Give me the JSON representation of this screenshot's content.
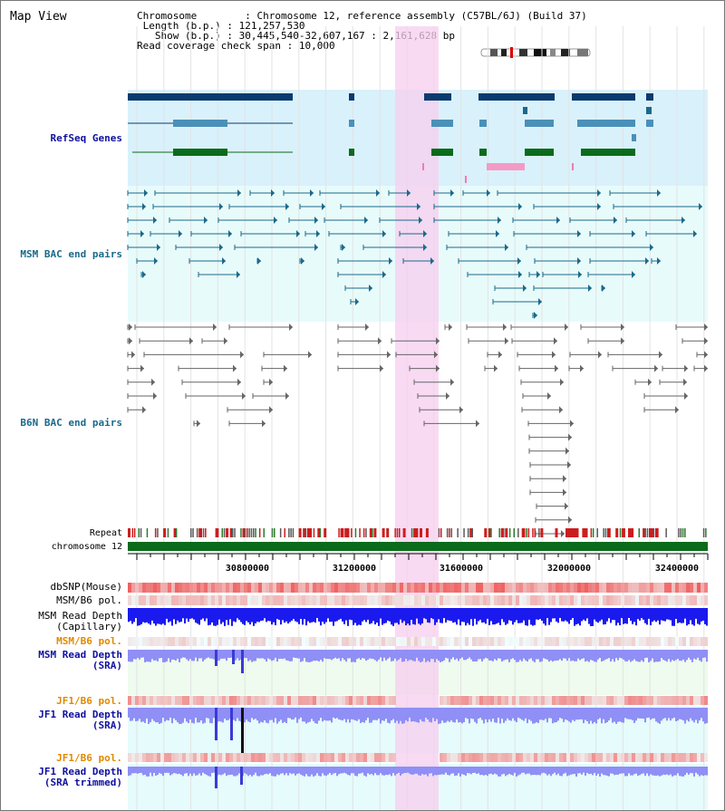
{
  "view_title": "Map View",
  "info": {
    "chromosome_label": "Chromosome",
    "chromosome_value": "Chromosome 12, reference assembly (C57BL/6J) (Build 37)",
    "length_label": "Length (b.p.)",
    "length_value": "121,257,530",
    "show_label": "Show (b.p.)",
    "show_value": "30,445,540-32,607,167 : 2,161,628 bp",
    "coverage_label": "Read coverage check span",
    "coverage_value": "10,000"
  },
  "tracks": {
    "refseq": "RefSeq Genes",
    "msm_bac": "MSM BAC end pairs",
    "b6n_bac": "B6N BAC end pairs",
    "repeat": "Repeat",
    "chromosome": "chromosome 12",
    "dbsnp": "dbSNP(Mouse)",
    "msm_b6_pol": "MSM/B6 pol.",
    "msm_depth_cap_1": "MSM Read Depth",
    "msm_depth_cap_2": "(Capillary)",
    "msm_b6_pol2": "MSM/B6 pol.",
    "msm_depth_sra_1": "MSM Read Depth",
    "msm_depth_sra_2": "(SRA)",
    "jf1_b6_pol": "JF1/B6 pol.",
    "jf1_depth_sra_1": "JF1 Read Depth",
    "jf1_depth_sra_2": "(SRA)",
    "jf1_b6_pol2": "JF1/B6 pol.",
    "jf1_depth_trim_1": "JF1 Read Depth",
    "jf1_depth_trim_2": "(SRA trimmed)"
  },
  "axis_ticks": [
    "30800000",
    "31200000",
    "31600000",
    "32000000",
    "32400000"
  ],
  "colors": {
    "refseq_dark": "#0b3b6e",
    "refseq_mid": "#4a90b8",
    "refseq_green": "#0a6b1a",
    "highlight": "#f7cdef",
    "bac_msm": "#1a6a8a",
    "bac_b6n": "#666666",
    "depth_blue": "#1a1aee",
    "depth_light": "#8f8ff5",
    "label_blue": "#1010a0",
    "label_orange": "#e08a00"
  }
}
